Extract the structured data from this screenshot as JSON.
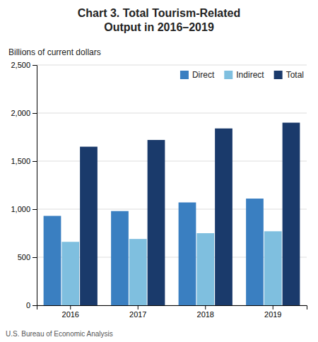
{
  "chart_data": {
    "type": "bar",
    "title": "Chart 3. Total Tourism-Related\nOutput in 2016–2019",
    "ylabel": "Billions of current dollars",
    "footnote": "U.S. Bureau of Economic Analysis",
    "categories": [
      "2016",
      "2017",
      "2018",
      "2019"
    ],
    "series": [
      {
        "name": "Direct",
        "color": "#3a7fc1",
        "values": [
          930,
          980,
          1070,
          1110
        ]
      },
      {
        "name": "Indirect",
        "color": "#7fbfdf",
        "values": [
          660,
          690,
          750,
          770
        ]
      },
      {
        "name": "Total",
        "color": "#1a3a6b",
        "values": [
          1650,
          1720,
          1840,
          1900
        ]
      }
    ],
    "ylim": [
      0,
      2500
    ],
    "yticks": [
      0,
      500,
      {
        "value": 1000,
        "label": "1,000"
      },
      {
        "value": 1500,
        "label": "1,500"
      },
      {
        "value": 2000,
        "label": "2,000"
      },
      {
        "value": 2500,
        "label": "2,500"
      }
    ],
    "grid": true,
    "legend": "upper right"
  }
}
